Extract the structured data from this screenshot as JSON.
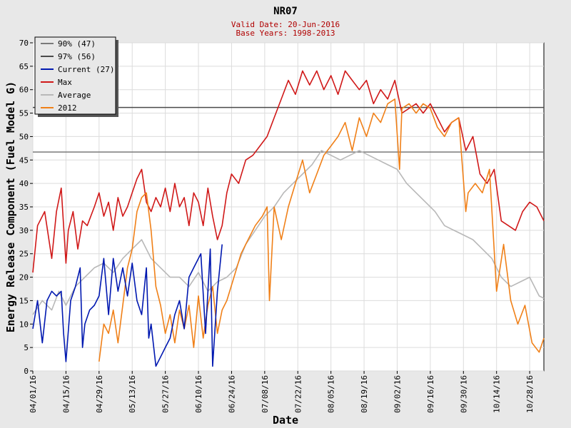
{
  "colors": {
    "background": "#e8e8e8",
    "plot_background": "#ffffff",
    "subtitle": "#b00000",
    "p90": "#7a7a7a",
    "p97": "#4a4a4a",
    "current": "#0018b0",
    "max": "#d01818",
    "average": "#b8b8b8",
    "y2012": "#f08018"
  },
  "chart_data": {
    "type": "line",
    "title": "NR07",
    "subtitle_lines": [
      "Valid Date: 20-Jun-2016",
      "Base Years: 1998-2013"
    ],
    "xlabel": "Date",
    "ylabel": "Energy Release Component (Fuel Model G)",
    "x_range": [
      "2016-04-01",
      "2016-11-03"
    ],
    "ylim": [
      0,
      70
    ],
    "yticks": [
      0,
      5,
      10,
      15,
      20,
      25,
      30,
      35,
      40,
      45,
      50,
      55,
      60,
      65,
      70
    ],
    "xticks": [
      "04/01/16",
      "04/15/16",
      "04/29/16",
      "05/13/16",
      "05/27/16",
      "06/10/16",
      "06/24/16",
      "07/08/16",
      "07/22/16",
      "08/05/16",
      "08/19/16",
      "09/02/16",
      "09/16/16",
      "09/30/16",
      "10/14/16",
      "10/28/16"
    ],
    "grid": true,
    "legend_position": "top-left",
    "thresholds": [
      {
        "name": "90% (47)",
        "value": 46.7
      },
      {
        "name": "97% (56)",
        "value": 56.2
      }
    ],
    "series": [
      {
        "name": "Current (27)",
        "x": [
          "2016-04-01",
          "2016-04-03",
          "2016-04-05",
          "2016-04-07",
          "2016-04-09",
          "2016-04-11",
          "2016-04-13",
          "2016-04-14",
          "2016-04-15",
          "2016-04-17",
          "2016-04-19",
          "2016-04-21",
          "2016-04-22",
          "2016-04-23",
          "2016-04-25",
          "2016-04-27",
          "2016-04-29",
          "2016-05-01",
          "2016-05-03",
          "2016-05-05",
          "2016-05-07",
          "2016-05-09",
          "2016-05-11",
          "2016-05-13",
          "2016-05-15",
          "2016-05-17",
          "2016-05-19",
          "2016-05-20",
          "2016-05-21",
          "2016-05-23",
          "2016-05-25",
          "2016-05-27",
          "2016-05-29",
          "2016-05-31",
          "2016-06-02",
          "2016-06-04",
          "2016-06-06",
          "2016-06-08",
          "2016-06-09",
          "2016-06-11",
          "2016-06-13",
          "2016-06-15",
          "2016-06-16",
          "2016-06-18",
          "2016-06-20"
        ],
        "values": [
          9,
          15,
          6,
          15,
          17,
          16,
          17,
          8,
          2,
          15,
          18,
          22,
          5,
          10,
          13,
          14,
          16,
          24,
          12,
          24,
          17,
          22,
          16,
          23,
          15,
          12,
          22,
          7,
          10,
          1,
          3,
          5,
          7,
          12,
          15,
          9,
          20,
          22,
          23,
          25,
          8,
          26,
          1,
          17,
          27
        ]
      },
      {
        "name": "Max",
        "x": [
          "2016-04-01",
          "2016-04-03",
          "2016-04-06",
          "2016-04-09",
          "2016-04-11",
          "2016-04-13",
          "2016-04-15",
          "2016-04-16",
          "2016-04-18",
          "2016-04-20",
          "2016-04-22",
          "2016-04-24",
          "2016-04-27",
          "2016-04-29",
          "2016-05-01",
          "2016-05-03",
          "2016-05-05",
          "2016-05-07",
          "2016-05-09",
          "2016-05-11",
          "2016-05-13",
          "2016-05-15",
          "2016-05-17",
          "2016-05-19",
          "2016-05-21",
          "2016-05-23",
          "2016-05-25",
          "2016-05-27",
          "2016-05-29",
          "2016-05-31",
          "2016-06-02",
          "2016-06-04",
          "2016-06-06",
          "2016-06-08",
          "2016-06-10",
          "2016-06-12",
          "2016-06-14",
          "2016-06-16",
          "2016-06-18",
          "2016-06-20",
          "2016-06-22",
          "2016-06-24",
          "2016-06-27",
          "2016-06-30",
          "2016-07-03",
          "2016-07-06",
          "2016-07-09",
          "2016-07-12",
          "2016-07-15",
          "2016-07-18",
          "2016-07-21",
          "2016-07-24",
          "2016-07-27",
          "2016-07-30",
          "2016-08-02",
          "2016-08-05",
          "2016-08-08",
          "2016-08-11",
          "2016-08-14",
          "2016-08-17",
          "2016-08-20",
          "2016-08-23",
          "2016-08-26",
          "2016-08-29",
          "2016-09-01",
          "2016-09-04",
          "2016-09-07",
          "2016-09-10",
          "2016-09-13",
          "2016-09-16",
          "2016-09-19",
          "2016-09-22",
          "2016-09-25",
          "2016-09-28",
          "2016-10-01",
          "2016-10-04",
          "2016-10-07",
          "2016-10-10",
          "2016-10-13",
          "2016-10-16",
          "2016-10-19",
          "2016-10-22",
          "2016-10-25",
          "2016-10-28",
          "2016-10-31",
          "2016-11-03"
        ],
        "values": [
          21,
          31,
          34,
          24,
          34,
          39,
          23,
          30,
          34,
          26,
          32,
          31,
          35,
          38,
          33,
          36,
          30,
          37,
          33,
          35,
          38,
          41,
          43,
          36,
          34,
          37,
          35,
          39,
          34,
          40,
          35,
          37,
          31,
          38,
          36,
          31,
          39,
          33,
          28,
          31,
          38,
          42,
          40,
          45,
          46,
          48,
          50,
          54,
          58,
          62,
          59,
          64,
          61,
          64,
          60,
          63,
          59,
          64,
          62,
          60,
          62,
          57,
          60,
          58,
          62,
          55,
          56,
          57,
          55,
          57,
          54,
          51,
          53,
          54,
          47,
          50,
          42,
          40,
          43,
          32,
          31,
          30,
          34,
          36,
          35,
          32
        ]
      },
      {
        "name": "Average",
        "x": [
          "2016-04-01",
          "2016-04-05",
          "2016-04-09",
          "2016-04-12",
          "2016-04-15",
          "2016-04-19",
          "2016-04-23",
          "2016-04-27",
          "2016-05-01",
          "2016-05-05",
          "2016-05-09",
          "2016-05-13",
          "2016-05-17",
          "2016-05-21",
          "2016-05-25",
          "2016-05-29",
          "2016-06-02",
          "2016-06-06",
          "2016-06-10",
          "2016-06-14",
          "2016-06-18",
          "2016-06-22",
          "2016-06-26",
          "2016-06-30",
          "2016-07-04",
          "2016-07-08",
          "2016-07-12",
          "2016-07-16",
          "2016-07-20",
          "2016-07-24",
          "2016-07-28",
          "2016-08-01",
          "2016-08-05",
          "2016-08-09",
          "2016-08-13",
          "2016-08-17",
          "2016-08-21",
          "2016-08-25",
          "2016-08-29",
          "2016-09-02",
          "2016-09-06",
          "2016-09-10",
          "2016-09-14",
          "2016-09-18",
          "2016-09-22",
          "2016-09-26",
          "2016-09-30",
          "2016-10-04",
          "2016-10-08",
          "2016-10-12",
          "2016-10-16",
          "2016-10-20",
          "2016-10-24",
          "2016-10-28",
          "2016-11-01",
          "2016-11-03"
        ],
        "values": [
          12,
          15,
          13,
          17,
          14,
          18,
          20,
          22,
          23,
          21,
          24,
          26,
          28,
          24,
          22,
          20,
          20,
          18,
          21,
          17,
          19,
          20,
          22,
          27,
          30,
          33,
          35,
          38,
          40,
          42,
          44,
          47,
          46,
          45,
          46,
          47,
          46,
          45,
          44,
          43,
          40,
          38,
          36,
          34,
          31,
          30,
          29,
          28,
          26,
          24,
          20,
          18,
          19,
          20,
          16,
          15.5
        ]
      },
      {
        "name": "2012",
        "x": [
          "2016-04-29",
          "2016-05-01",
          "2016-05-03",
          "2016-05-05",
          "2016-05-07",
          "2016-05-09",
          "2016-05-11",
          "2016-05-13",
          "2016-05-15",
          "2016-05-17",
          "2016-05-19",
          "2016-05-21",
          "2016-05-23",
          "2016-05-25",
          "2016-05-27",
          "2016-05-29",
          "2016-05-31",
          "2016-06-02",
          "2016-06-04",
          "2016-06-06",
          "2016-06-08",
          "2016-06-10",
          "2016-06-12",
          "2016-06-14",
          "2016-06-16",
          "2016-06-18",
          "2016-06-20",
          "2016-06-22",
          "2016-06-25",
          "2016-06-28",
          "2016-07-01",
          "2016-07-04",
          "2016-07-07",
          "2016-07-09",
          "2016-07-10",
          "2016-07-12",
          "2016-07-15",
          "2016-07-18",
          "2016-07-21",
          "2016-07-24",
          "2016-07-27",
          "2016-07-30",
          "2016-08-02",
          "2016-08-05",
          "2016-08-08",
          "2016-08-11",
          "2016-08-14",
          "2016-08-17",
          "2016-08-20",
          "2016-08-23",
          "2016-08-26",
          "2016-08-29",
          "2016-09-01",
          "2016-09-03",
          "2016-09-04",
          "2016-09-07",
          "2016-09-10",
          "2016-09-13",
          "2016-09-16",
          "2016-09-19",
          "2016-09-22",
          "2016-09-25",
          "2016-09-28",
          "2016-10-01",
          "2016-10-02",
          "2016-10-05",
          "2016-10-08",
          "2016-10-11",
          "2016-10-14",
          "2016-10-17",
          "2016-10-20",
          "2016-10-23",
          "2016-10-26",
          "2016-10-29",
          "2016-11-01",
          "2016-11-03"
        ],
        "values": [
          2,
          10,
          8,
          13,
          6,
          14,
          22,
          26,
          34,
          37,
          38,
          30,
          18,
          14,
          8,
          12,
          6,
          13,
          9,
          14,
          5,
          16,
          7,
          14,
          18,
          8,
          13,
          15,
          20,
          25,
          28,
          31,
          33,
          35,
          15,
          35,
          28,
          35,
          40,
          45,
          38,
          42,
          46,
          48,
          50,
          53,
          47,
          54,
          50,
          55,
          53,
          57,
          58,
          43,
          56,
          57,
          55,
          57,
          56,
          52,
          50,
          53,
          54,
          34,
          38,
          40,
          38,
          43,
          17,
          27,
          15,
          10,
          14,
          6,
          4,
          7
        ]
      }
    ]
  }
}
